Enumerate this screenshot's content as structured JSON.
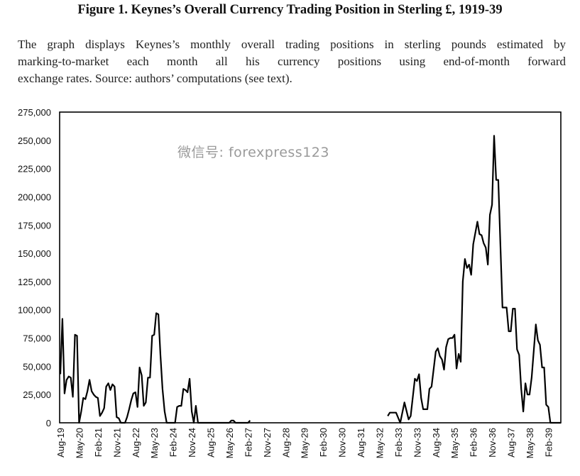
{
  "title": "Figure 1. Keynes’s Overall Currency Trading Position in Sterling £, 1919-39",
  "caption_lines": [
    "The graph displays Keynes’s monthly overall trading positions in sterling pounds estimated by",
    "marking-to-market each month all his currency positions using end-of-month forward",
    "exchange rates. Source: authors’ computations (see text)."
  ],
  "watermark": "微信号: forexpress123",
  "chart_data": {
    "type": "line",
    "title": "",
    "xlabel": "",
    "ylabel": "",
    "xlim": [
      "1919-08",
      "1939-08"
    ],
    "ylim": [
      0,
      275000
    ],
    "grid": false,
    "legend": "none",
    "line_color": "#000000",
    "y_ticks": [
      0,
      25000,
      50000,
      75000,
      100000,
      125000,
      150000,
      175000,
      200000,
      225000,
      250000,
      275000
    ],
    "y_tick_labels": [
      "0",
      "25,000",
      "50,000",
      "75,000",
      "100,000",
      "125,000",
      "150,000",
      "175,000",
      "200,000",
      "225,000",
      "250,000",
      "275,000"
    ],
    "x_ticks": [
      "1919-08",
      "1920-05",
      "1921-02",
      "1921-11",
      "1922-08",
      "1923-05",
      "1924-02",
      "1924-11",
      "1925-08",
      "1926-05",
      "1927-02",
      "1927-11",
      "1928-08",
      "1929-05",
      "1930-02",
      "1930-11",
      "1931-08",
      "1932-05",
      "1933-02",
      "1933-11",
      "1934-08",
      "1935-05",
      "1936-02",
      "1936-11",
      "1937-08",
      "1938-05",
      "1939-02"
    ],
    "x_tick_labels": [
      "Aug-19",
      "May-20",
      "Feb-21",
      "Nov-21",
      "Aug-22",
      "May-23",
      "Feb-24",
      "Nov-24",
      "Aug-25",
      "May-26",
      "Feb-27",
      "Nov-27",
      "Aug-28",
      "May-29",
      "Feb-30",
      "Nov-30",
      "Aug-31",
      "May-32",
      "Feb-33",
      "Nov-33",
      "Aug-34",
      "May-35",
      "Feb-36",
      "Nov-36",
      "Aug-37",
      "May-38",
      "Feb-39"
    ],
    "segments": [
      [
        [
          "1919-08",
          43000
        ],
        [
          "1919-09",
          92000
        ],
        [
          "1919-10",
          26000
        ],
        [
          "1919-11",
          38000
        ],
        [
          "1919-12",
          41000
        ],
        [
          "1920-01",
          40000
        ],
        [
          "1920-02",
          23000
        ],
        [
          "1920-03",
          78000
        ],
        [
          "1920-04",
          77000
        ],
        [
          "1920-05",
          0
        ],
        [
          "1920-06",
          10000
        ],
        [
          "1920-07",
          22000
        ],
        [
          "1920-08",
          21000
        ],
        [
          "1920-09",
          28000
        ],
        [
          "1920-10",
          38000
        ],
        [
          "1920-11",
          28000
        ],
        [
          "1920-12",
          25000
        ],
        [
          "1921-01",
          23000
        ],
        [
          "1921-02",
          22000
        ],
        [
          "1921-03",
          6000
        ],
        [
          "1921-04",
          9000
        ],
        [
          "1921-05",
          13000
        ],
        [
          "1921-06",
          32000
        ],
        [
          "1921-07",
          35000
        ],
        [
          "1921-08",
          29000
        ],
        [
          "1921-09",
          34000
        ],
        [
          "1921-10",
          32000
        ],
        [
          "1921-11",
          5000
        ],
        [
          "1921-12",
          4000
        ],
        [
          "1922-01",
          0
        ],
        [
          "1922-03",
          0
        ],
        [
          "1922-04",
          5000
        ],
        [
          "1922-05",
          12000
        ],
        [
          "1922-06",
          20000
        ],
        [
          "1922-07",
          26000
        ],
        [
          "1922-08",
          27000
        ],
        [
          "1922-09",
          14000
        ],
        [
          "1922-10",
          49000
        ],
        [
          "1922-11",
          42000
        ],
        [
          "1922-12",
          15000
        ],
        [
          "1923-01",
          18000
        ],
        [
          "1923-02",
          40000
        ],
        [
          "1923-03",
          40000
        ],
        [
          "1923-04",
          77000
        ],
        [
          "1923-05",
          78000
        ],
        [
          "1923-06",
          97000
        ],
        [
          "1923-07",
          96000
        ],
        [
          "1923-08",
          60000
        ],
        [
          "1923-09",
          30000
        ],
        [
          "1923-10",
          10000
        ],
        [
          "1923-11",
          0
        ],
        [
          "1924-03",
          0
        ],
        [
          "1924-04",
          14000
        ],
        [
          "1924-05",
          15000
        ],
        [
          "1924-06",
          15000
        ],
        [
          "1924-07",
          30000
        ],
        [
          "1924-08",
          29000
        ],
        [
          "1924-09",
          27000
        ],
        [
          "1924-10",
          39000
        ],
        [
          "1924-11",
          10000
        ],
        [
          "1924-12",
          0
        ],
        [
          "1925-01",
          15000
        ],
        [
          "1925-02",
          0
        ],
        [
          "1926-05",
          0
        ],
        [
          "1926-06",
          2000
        ],
        [
          "1926-07",
          2000
        ],
        [
          "1926-08",
          0
        ],
        [
          "1927-02",
          0
        ],
        [
          "1927-03",
          2000
        ]
      ],
      [
        [
          "1932-09",
          6000
        ],
        [
          "1932-10",
          9000
        ],
        [
          "1933-01",
          9000
        ],
        [
          "1933-03",
          0
        ],
        [
          "1933-05",
          18000
        ],
        [
          "1933-07",
          3000
        ],
        [
          "1933-08",
          6000
        ],
        [
          "1933-10",
          39000
        ],
        [
          "1933-11",
          37000
        ],
        [
          "1933-12",
          43000
        ],
        [
          "1934-01",
          22000
        ],
        [
          "1934-02",
          12000
        ],
        [
          "1934-04",
          12000
        ],
        [
          "1934-05",
          30000
        ],
        [
          "1934-06",
          32000
        ],
        [
          "1934-08",
          63000
        ],
        [
          "1934-09",
          66000
        ],
        [
          "1934-10",
          59000
        ],
        [
          "1934-11",
          56000
        ],
        [
          "1934-12",
          47000
        ],
        [
          "1935-01",
          67000
        ],
        [
          "1935-02",
          74000
        ],
        [
          "1935-03",
          75000
        ],
        [
          "1935-04",
          75000
        ],
        [
          "1935-05",
          78000
        ],
        [
          "1935-06",
          48000
        ],
        [
          "1935-07",
          61000
        ],
        [
          "1935-08",
          54000
        ],
        [
          "1935-09",
          125000
        ],
        [
          "1935-10",
          145000
        ],
        [
          "1935-11",
          137000
        ],
        [
          "1935-12",
          140000
        ],
        [
          "1936-01",
          131000
        ],
        [
          "1936-02",
          158000
        ],
        [
          "1936-04",
          178000
        ],
        [
          "1936-05",
          167000
        ],
        [
          "1936-06",
          166000
        ],
        [
          "1936-07",
          159000
        ],
        [
          "1936-08",
          155000
        ],
        [
          "1936-09",
          140000
        ],
        [
          "1936-10",
          184000
        ],
        [
          "1936-11",
          193000
        ],
        [
          "1936-12",
          254000
        ],
        [
          "1937-01",
          215000
        ],
        [
          "1937-02",
          215000
        ],
        [
          "1937-03",
          159000
        ],
        [
          "1937-04",
          102000
        ],
        [
          "1937-06",
          102000
        ],
        [
          "1937-07",
          81000
        ],
        [
          "1937-08",
          81000
        ],
        [
          "1937-09",
          101000
        ],
        [
          "1937-10",
          101000
        ],
        [
          "1937-11",
          65000
        ],
        [
          "1937-12",
          60000
        ],
        [
          "1938-01",
          30000
        ],
        [
          "1938-02",
          10000
        ],
        [
          "1938-03",
          35000
        ],
        [
          "1938-04",
          25000
        ],
        [
          "1938-05",
          25000
        ],
        [
          "1938-06",
          40000
        ],
        [
          "1938-08",
          87000
        ],
        [
          "1938-09",
          73000
        ],
        [
          "1938-10",
          69000
        ],
        [
          "1938-11",
          49000
        ],
        [
          "1938-12",
          49000
        ],
        [
          "1939-01",
          16000
        ],
        [
          "1939-02",
          14000
        ],
        [
          "1939-03",
          0
        ],
        [
          "1939-08",
          0
        ]
      ]
    ]
  }
}
